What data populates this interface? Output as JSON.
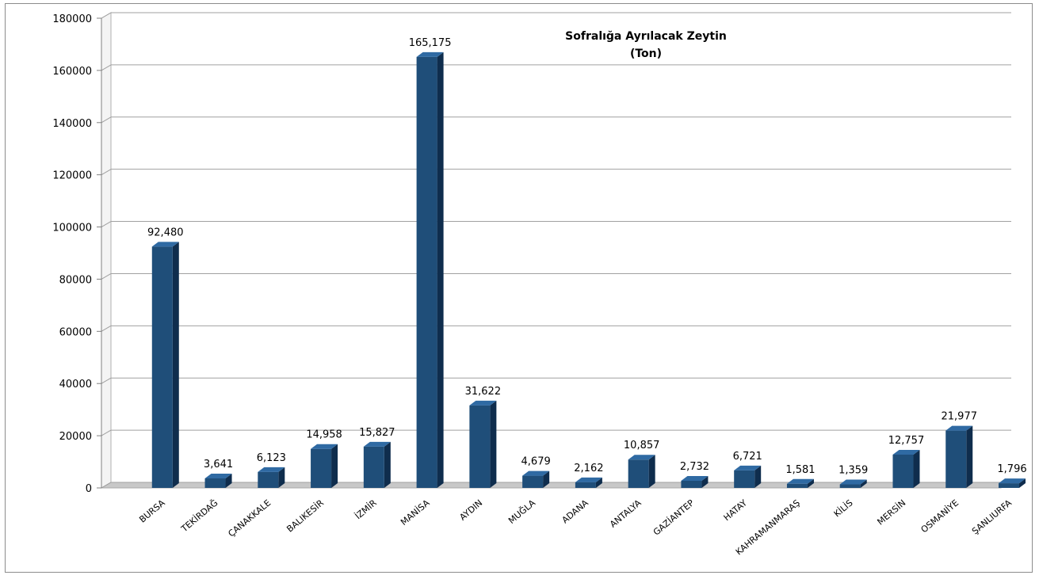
{
  "chart_data": {
    "type": "bar",
    "title": "Sofralığa Ayrılacak Zeytin",
    "subtitle": "(Ton)",
    "xlabel": "",
    "ylabel": "",
    "ylim": [
      0,
      180000
    ],
    "yticks": [
      0,
      20000,
      40000,
      60000,
      80000,
      100000,
      120000,
      140000,
      160000,
      180000
    ],
    "ytick_labels": [
      "0",
      "20000",
      "40000",
      "60000",
      "80000",
      "100000",
      "120000",
      "140000",
      "160000",
      "180000"
    ],
    "grid": true,
    "legend": "none",
    "bar_color": "#1f4e79",
    "categories": [
      "BURSA",
      "TEKİRDAĞ",
      "ÇANAKKALE",
      "BALIKESİR",
      "İZMİR",
      "MANİSA",
      "AYDIN",
      "MUĞLA",
      "ADANA",
      "ANTALYA",
      "GAZİANTEP",
      "HATAY",
      "KAHRAMANMARAŞ",
      "KİLİS",
      "MERSİN",
      "OSMANİYE",
      "ŞANLIURFA"
    ],
    "values": [
      92480,
      3641,
      6123,
      14958,
      15827,
      165175,
      31622,
      4679,
      2162,
      10857,
      2732,
      6721,
      1581,
      1359,
      12757,
      21977,
      1796
    ],
    "data_labels": [
      "92,480",
      "3,641",
      "6,123",
      "14,958",
      "15,827",
      "165,175",
      "31,622",
      "4,679",
      "2,162",
      "10,857",
      "2,732",
      "6,721",
      "1,581",
      "1,359",
      "12,757",
      "21,977",
      "1,796"
    ]
  }
}
